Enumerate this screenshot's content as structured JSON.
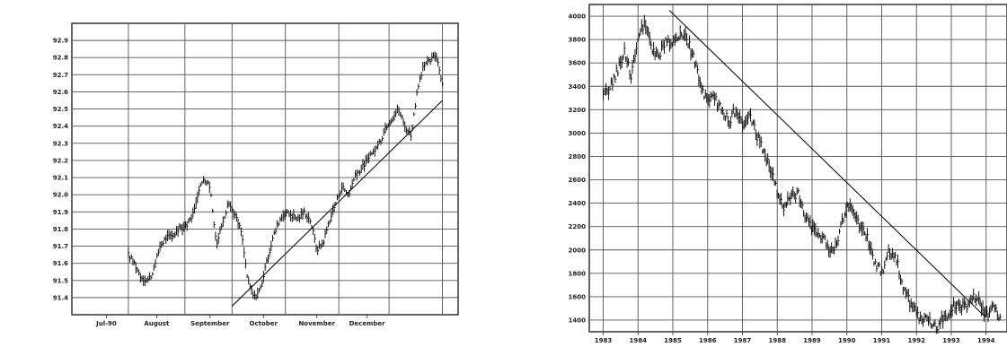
{
  "chart_data": [
    {
      "type": "bar",
      "subtype": "high-low price bars with trendline",
      "x_labels": [
        "Jul-90",
        "August",
        "September",
        "October",
        "November",
        "December"
      ],
      "y_ticks": [
        "91.4",
        "91.5",
        "91.6",
        "91.7",
        "91.8",
        "91.9",
        "92.0",
        "92.1",
        "92.2",
        "92.3",
        "92.4",
        "92.5",
        "92.6",
        "92.7",
        "92.8",
        "92.9"
      ],
      "ylim": [
        91.3,
        93.0
      ],
      "series_path": [
        [
          0.0,
          91.65
        ],
        [
          0.02,
          91.6
        ],
        [
          0.04,
          91.52
        ],
        [
          0.06,
          91.5
        ],
        [
          0.08,
          91.55
        ],
        [
          0.1,
          91.7
        ],
        [
          0.12,
          91.75
        ],
        [
          0.14,
          91.76
        ],
        [
          0.16,
          91.8
        ],
        [
          0.18,
          91.82
        ],
        [
          0.2,
          91.85
        ],
        [
          0.22,
          92.0
        ],
        [
          0.24,
          92.1
        ],
        [
          0.26,
          92.05
        ],
        [
          0.28,
          91.7
        ],
        [
          0.3,
          91.85
        ],
        [
          0.32,
          91.95
        ],
        [
          0.34,
          91.88
        ],
        [
          0.36,
          91.78
        ],
        [
          0.38,
          91.5
        ],
        [
          0.4,
          91.4
        ],
        [
          0.42,
          91.45
        ],
        [
          0.44,
          91.6
        ],
        [
          0.46,
          91.75
        ],
        [
          0.48,
          91.85
        ],
        [
          0.5,
          91.9
        ],
        [
          0.52,
          91.88
        ],
        [
          0.54,
          91.86
        ],
        [
          0.56,
          91.9
        ],
        [
          0.58,
          91.85
        ],
        [
          0.6,
          91.68
        ],
        [
          0.62,
          91.72
        ],
        [
          0.64,
          91.85
        ],
        [
          0.66,
          91.95
        ],
        [
          0.68,
          92.05
        ],
        [
          0.7,
          92.0
        ],
        [
          0.72,
          92.1
        ],
        [
          0.74,
          92.15
        ],
        [
          0.76,
          92.2
        ],
        [
          0.78,
          92.25
        ],
        [
          0.8,
          92.3
        ],
        [
          0.82,
          92.4
        ],
        [
          0.84,
          92.45
        ],
        [
          0.86,
          92.5
        ],
        [
          0.88,
          92.4
        ],
        [
          0.9,
          92.35
        ],
        [
          0.92,
          92.6
        ],
        [
          0.94,
          92.75
        ],
        [
          0.96,
          92.78
        ],
        [
          0.98,
          92.82
        ],
        [
          1.0,
          92.65
        ]
      ],
      "trendline": [
        [
          0.33,
          91.35
        ],
        [
          1.0,
          92.55
        ]
      ]
    },
    {
      "type": "bar",
      "subtype": "high-low price bars with trendline",
      "x_labels": [
        "1983",
        "1984",
        "1985",
        "1986",
        "1987",
        "1988",
        "1989",
        "1990",
        "1991",
        "1992",
        "1993",
        "1994"
      ],
      "y_ticks": [
        "1400",
        "1600",
        "1800",
        "2000",
        "2200",
        "2400",
        "2600",
        "2800",
        "3000",
        "3200",
        "3400",
        "3600",
        "3800",
        "4000"
      ],
      "ylim": [
        1300,
        4100
      ],
      "series_path": [
        [
          1983.0,
          3300
        ],
        [
          1983.3,
          3450
        ],
        [
          1983.6,
          3700
        ],
        [
          1983.8,
          3500
        ],
        [
          1984.0,
          3800
        ],
        [
          1984.2,
          3950
        ],
        [
          1984.4,
          3700
        ],
        [
          1984.6,
          3650
        ],
        [
          1984.8,
          3800
        ],
        [
          1985.0,
          3750
        ],
        [
          1985.2,
          3850
        ],
        [
          1985.4,
          3800
        ],
        [
          1985.6,
          3650
        ],
        [
          1985.8,
          3400
        ],
        [
          1986.0,
          3250
        ],
        [
          1986.2,
          3300
        ],
        [
          1986.4,
          3200
        ],
        [
          1986.6,
          3100
        ],
        [
          1986.8,
          3200
        ],
        [
          1987.0,
          3050
        ],
        [
          1987.2,
          3150
        ],
        [
          1987.4,
          3000
        ],
        [
          1987.6,
          2850
        ],
        [
          1987.8,
          2700
        ],
        [
          1988.0,
          2500
        ],
        [
          1988.2,
          2350
        ],
        [
          1988.4,
          2450
        ],
        [
          1988.6,
          2500
        ],
        [
          1988.8,
          2300
        ],
        [
          1989.0,
          2200
        ],
        [
          1989.2,
          2150
        ],
        [
          1989.4,
          2050
        ],
        [
          1989.6,
          1980
        ],
        [
          1989.8,
          2150
        ],
        [
          1990.0,
          2400
        ],
        [
          1990.2,
          2300
        ],
        [
          1990.4,
          2200
        ],
        [
          1990.6,
          2100
        ],
        [
          1990.8,
          1900
        ],
        [
          1991.0,
          1800
        ],
        [
          1991.2,
          2000
        ],
        [
          1991.4,
          1950
        ],
        [
          1991.6,
          1700
        ],
        [
          1991.8,
          1550
        ],
        [
          1992.0,
          1450
        ],
        [
          1992.2,
          1400
        ],
        [
          1992.4,
          1380
        ],
        [
          1992.6,
          1350
        ],
        [
          1992.8,
          1420
        ],
        [
          1993.0,
          1500
        ],
        [
          1993.2,
          1550
        ],
        [
          1993.4,
          1500
        ],
        [
          1993.6,
          1600
        ],
        [
          1993.8,
          1550
        ],
        [
          1994.0,
          1450
        ],
        [
          1994.2,
          1500
        ],
        [
          1994.4,
          1430
        ]
      ],
      "trendline": [
        [
          1984.9,
          4050
        ],
        [
          1994.0,
          1420
        ]
      ]
    }
  ]
}
